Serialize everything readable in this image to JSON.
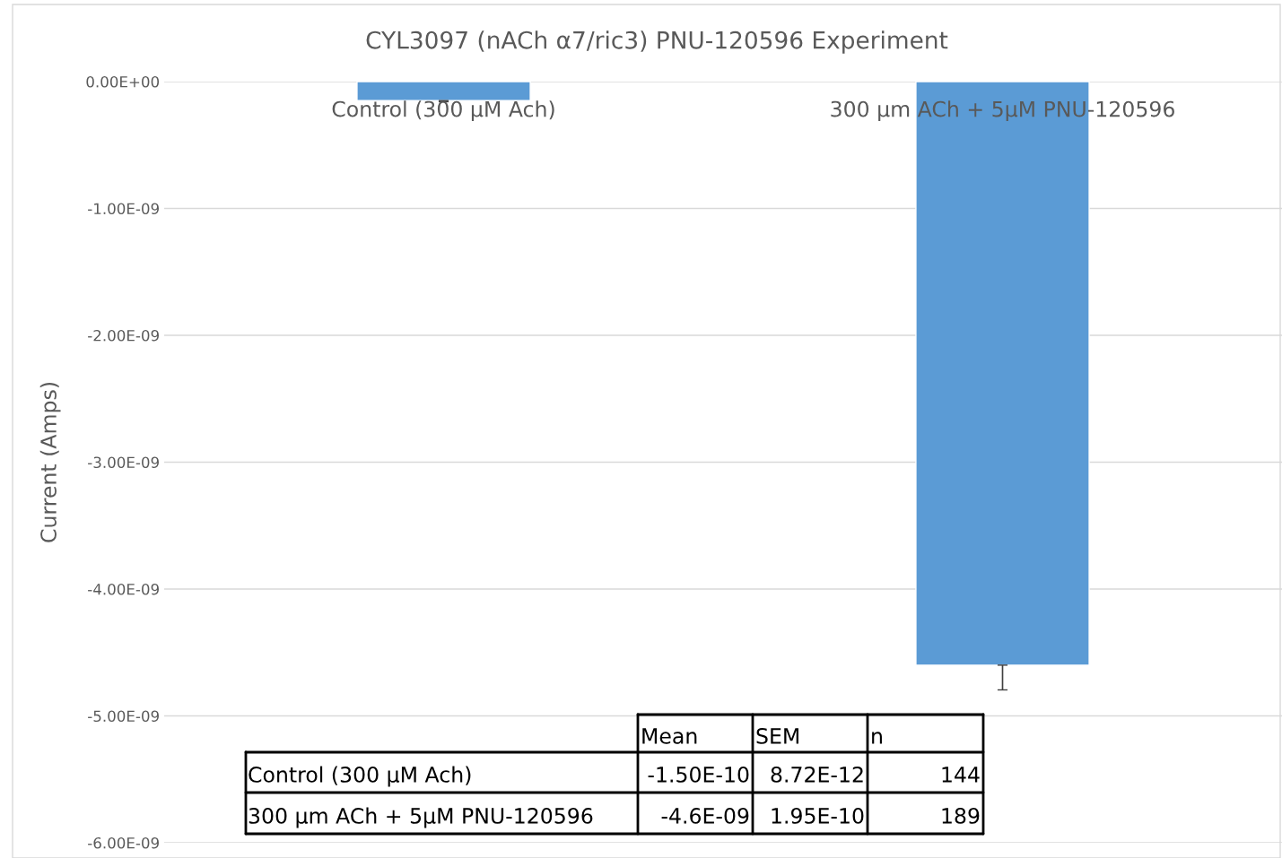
{
  "chart_data": {
    "type": "bar",
    "title": "CYL3097 (nACh α7/ric3) PNU-120596 Experiment",
    "ylabel": "Current (Amps)",
    "categories": [
      "Control (300 µM Ach)",
      "300 µm ACh + 5µM PNU-120596"
    ],
    "values": [
      -1.5e-10,
      -4.6e-09
    ],
    "errors": [
      [
        -1.5872e-10,
        -1.5e-10
      ],
      [
        -4.795e-09,
        -4.6e-09
      ]
    ],
    "color": "#5b9bd5",
    "ylim": [
      -6e-09,
      0
    ],
    "yticks": [
      {
        "value": 0,
        "label": "0.00E+00"
      },
      {
        "value": -1e-09,
        "label": "-1.00E-09"
      },
      {
        "value": -2e-09,
        "label": "-2.00E-09"
      },
      {
        "value": -3e-09,
        "label": "-3.00E-09"
      },
      {
        "value": -4e-09,
        "label": "-4.00E-09"
      },
      {
        "value": -5e-09,
        "label": "-5.00E-09"
      },
      {
        "value": -6e-09,
        "label": "-6.00E-09"
      }
    ],
    "grid": "y",
    "annotations": [
      "Mean",
      "SEM",
      "n",
      "-1.50E-10",
      "8.72E-12",
      "144",
      "-4.6E-09",
      "1.95E-10",
      "189"
    ]
  }
}
